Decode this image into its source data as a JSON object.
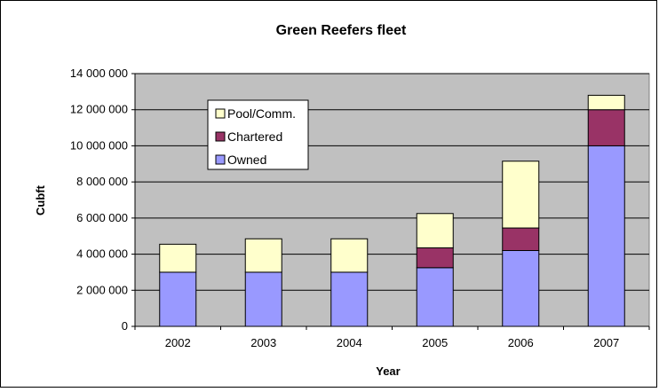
{
  "chart_data": {
    "type": "bar",
    "stacked": true,
    "title": "Green Reefers fleet",
    "xlabel": "Year",
    "ylabel": "Cubft",
    "categories": [
      "2002",
      "2003",
      "2004",
      "2005",
      "2006",
      "2007"
    ],
    "series": [
      {
        "name": "Owned",
        "values": [
          3000000,
          3000000,
          3000000,
          3250000,
          4200000,
          10000000
        ],
        "color": "#9999ff"
      },
      {
        "name": "Chartered",
        "values": [
          0,
          0,
          0,
          1100000,
          1250000,
          2000000
        ],
        "color": "#993366"
      },
      {
        "name": "Pool/Comm.",
        "values": [
          1550000,
          1850000,
          1850000,
          1900000,
          3700000,
          800000
        ],
        "color": "#ffffcc"
      }
    ],
    "ylim": [
      0,
      14000000
    ],
    "yticks": [
      "0",
      "2 000 000",
      "4 000 000",
      "6 000 000",
      "8 000 000",
      "10 000 000",
      "12 000 000",
      "14 000 000"
    ],
    "grid": true,
    "legend_position": "top-left, inside plot",
    "plot_background": "#c0c0c0"
  }
}
